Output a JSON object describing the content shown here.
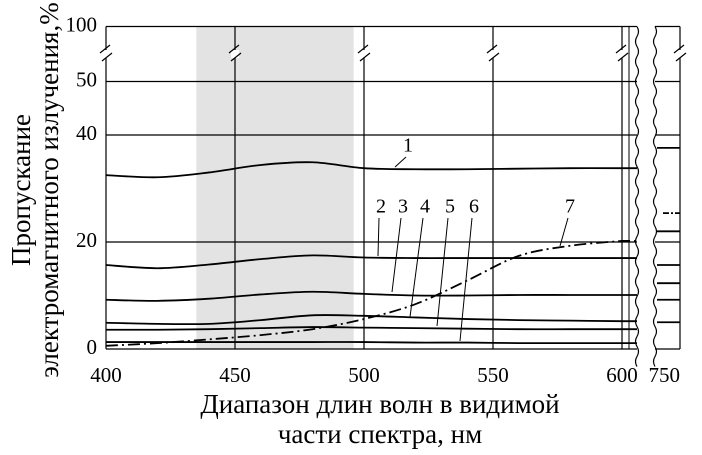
{
  "chart_data": {
    "type": "line",
    "y_label": [
      "Пропускание",
      "электромагнитного излучения,%"
    ],
    "x_label": [
      "Диапазон длин волн в видимой",
      "части спектра, нм"
    ],
    "x": [
      400,
      420,
      440,
      460,
      480,
      500,
      520,
      540,
      560,
      580,
      600,
      750
    ],
    "series": [
      {
        "name": "1",
        "color": "#000000",
        "values": [
          32.5,
          32.1,
          33.0,
          34.4,
          34.9,
          33.8,
          33.6,
          33.6,
          33.7,
          33.8,
          33.8,
          37.6
        ]
      },
      {
        "name": "2",
        "color": "#000000",
        "values": [
          15.7,
          15.1,
          15.8,
          16.8,
          17.5,
          17.1,
          17.0,
          17.0,
          17.0,
          17.0,
          17.0,
          22.0
        ]
      },
      {
        "name": "3",
        "color": "#000000",
        "values": [
          9.2,
          9.0,
          9.4,
          10.2,
          10.7,
          10.3,
          10.0,
          10.0,
          10.1,
          10.1,
          10.1,
          15.7
        ]
      },
      {
        "name": "4",
        "color": "#000000",
        "values": [
          4.9,
          4.7,
          4.7,
          5.4,
          6.3,
          6.2,
          5.9,
          5.6,
          5.4,
          5.3,
          5.2,
          12.3
        ]
      },
      {
        "name": "5",
        "color": "#000000",
        "values": [
          3.6,
          3.6,
          3.7,
          3.9,
          4.1,
          4.0,
          3.9,
          3.8,
          3.7,
          3.7,
          3.7,
          9.2
        ]
      },
      {
        "name": "6",
        "color": "#000000",
        "values": [
          1.3,
          1.3,
          1.3,
          1.3,
          1.3,
          1.3,
          1.2,
          1.2,
          1.1,
          1.1,
          1.1,
          5.0
        ]
      },
      {
        "name": "7",
        "color": "#000000",
        "dashed": true,
        "values": [
          0.6,
          1.1,
          1.8,
          2.6,
          3.7,
          5.6,
          8.4,
          12.8,
          17.4,
          19.3,
          20.2,
          25.4
        ]
      }
    ],
    "highlight": [
      435,
      496
    ],
    "highlight_color": "#e3e3e3",
    "xlim": [
      400,
      750
    ],
    "xticks": [
      400,
      450,
      500,
      550,
      600,
      750
    ],
    "ylim": [
      0,
      100
    ],
    "yticks": [
      0,
      20,
      40,
      50,
      100
    ],
    "x_axis_break": true,
    "y_axis_break": true,
    "grid": true
  }
}
